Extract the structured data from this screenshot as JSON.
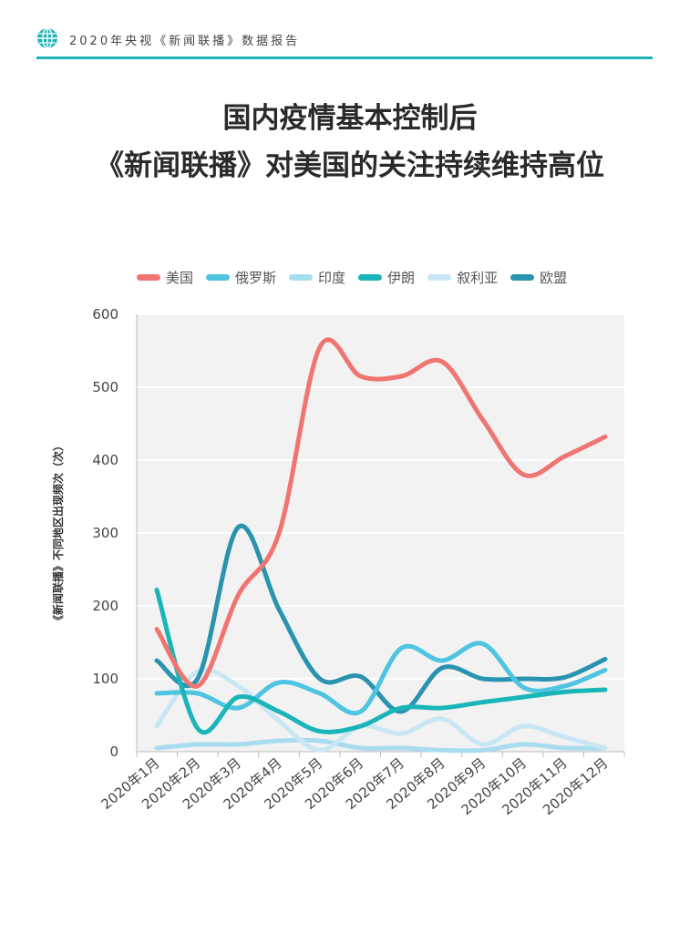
{
  "header": {
    "report_label": "2020年央视《新闻联播》数据报告",
    "icon": "globe-icon",
    "accent_color": "#1fb3b6"
  },
  "title": {
    "line1": "国内疫情基本控制后",
    "line2": "《新闻联播》对美国的关注持续维持高位"
  },
  "chart_data": {
    "type": "line",
    "title": "",
    "ylabel": "《新闻联播》不同地区出现频次（次）",
    "xlabel": "",
    "ylim": [
      0,
      600
    ],
    "yticks": [
      0,
      100,
      200,
      300,
      400,
      500,
      600
    ],
    "grid": true,
    "legend_position": "top",
    "categories": [
      "2020年1月",
      "2020年2月",
      "2020年3月",
      "2020年4月",
      "2020年5月",
      "2020年6月",
      "2020年7月",
      "2020年8月",
      "2020年9月",
      "2020年10月",
      "2020年11月",
      "2020年12月"
    ],
    "series": [
      {
        "name": "美国",
        "color": "#f07470",
        "values": [
          168,
          90,
          215,
          300,
          555,
          515,
          515,
          535,
          455,
          380,
          405,
          432
        ]
      },
      {
        "name": "俄罗斯",
        "color": "#4fc4e0",
        "values": [
          80,
          80,
          60,
          95,
          80,
          55,
          142,
          125,
          148,
          88,
          90,
          112
        ]
      },
      {
        "name": "印度",
        "color": "#a8dcef",
        "values": [
          5,
          10,
          10,
          15,
          15,
          5,
          5,
          2,
          2,
          10,
          5,
          5
        ]
      },
      {
        "name": "伊朗",
        "color": "#1ab5b8",
        "values": [
          222,
          32,
          75,
          55,
          28,
          35,
          60,
          60,
          68,
          75,
          82,
          85
        ]
      },
      {
        "name": "叙利亚",
        "color": "#c9e6f4",
        "values": [
          35,
          110,
          90,
          42,
          2,
          35,
          25,
          45,
          10,
          35,
          20,
          5
        ]
      },
      {
        "name": "欧盟",
        "color": "#2a93b0",
        "values": [
          125,
          100,
          308,
          195,
          100,
          103,
          55,
          115,
          100,
          100,
          102,
          127
        ]
      }
    ]
  }
}
